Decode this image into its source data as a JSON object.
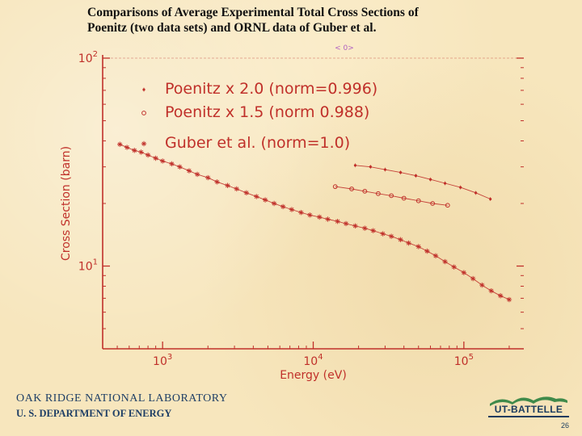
{
  "slide": {
    "title_line1": "Comparisons of Average Experimental Total Cross Sections of",
    "title_line2": "Poenitz (two data sets) and ORNL data of Guber et al.",
    "page_number": "26"
  },
  "footer": {
    "org_line1": "OAK RIDGE NATIONAL LABORATORY",
    "org_line2": "U. S. DEPARTMENT OF ENERGY",
    "logo_text": "UT-BATTELLE"
  },
  "chart_data": {
    "type": "scatter",
    "xlabel": "Energy (eV)",
    "ylabel": "Cross Section (barn)",
    "xscale": "log",
    "yscale": "log",
    "xlim": [
      400,
      250000
    ],
    "ylim": [
      4,
      100
    ],
    "x_ticks": [
      {
        "value": 1000,
        "label": "10^3"
      },
      {
        "value": 10000,
        "label": "10^4"
      },
      {
        "value": 100000,
        "label": "10^5"
      }
    ],
    "y_ticks": [
      {
        "value": 10,
        "label": "10^1"
      },
      {
        "value": 100,
        "label": "10^2"
      }
    ],
    "top_note": "< 0>",
    "colors": {
      "axes": "#c0302a",
      "data": "#c0302a",
      "text": "#c0302a"
    },
    "legend_position": "top-left",
    "series": [
      {
        "name": "Poenitz x 2.0 (norm=0.996)",
        "marker": "dot",
        "x": [
          19000,
          24000,
          30000,
          38000,
          48000,
          60000,
          75000,
          95000,
          120000,
          150000
        ],
        "y": [
          30.5,
          30.0,
          29.1,
          28.2,
          27.2,
          26.1,
          25.0,
          23.9,
          22.5,
          21.0
        ]
      },
      {
        "name": "Poenitz x 1.5 (norm  0.988)",
        "marker": "circle",
        "x": [
          14000,
          18000,
          22000,
          27000,
          33000,
          40000,
          50000,
          62000,
          78000
        ],
        "y": [
          24.1,
          23.5,
          22.9,
          22.3,
          21.8,
          21.2,
          20.6,
          20.0,
          19.6
        ]
      },
      {
        "name": "Guber et al. (norm=1.0)",
        "marker": "star",
        "x": [
          520,
          580,
          650,
          720,
          800,
          900,
          1000,
          1150,
          1300,
          1500,
          1700,
          2000,
          2300,
          2700,
          3100,
          3600,
          4200,
          4800,
          5500,
          6300,
          7200,
          8300,
          9500,
          11000,
          12500,
          14500,
          16500,
          19000,
          22000,
          25000,
          29000,
          33000,
          38000,
          43000,
          50000,
          57000,
          65000,
          75000,
          86000,
          100000,
          115000,
          132000,
          152000,
          175000,
          200000
        ],
        "y": [
          38.5,
          37.2,
          36.0,
          35.3,
          34.2,
          33.0,
          32.0,
          31.0,
          30.0,
          28.7,
          27.6,
          26.6,
          25.4,
          24.4,
          23.5,
          22.5,
          21.6,
          20.8,
          20.0,
          19.3,
          18.7,
          18.1,
          17.6,
          17.2,
          16.8,
          16.4,
          16.0,
          15.6,
          15.2,
          14.8,
          14.3,
          13.9,
          13.4,
          12.9,
          12.4,
          11.8,
          11.2,
          10.5,
          9.9,
          9.3,
          8.7,
          8.1,
          7.6,
          7.2,
          6.9
        ]
      }
    ]
  }
}
